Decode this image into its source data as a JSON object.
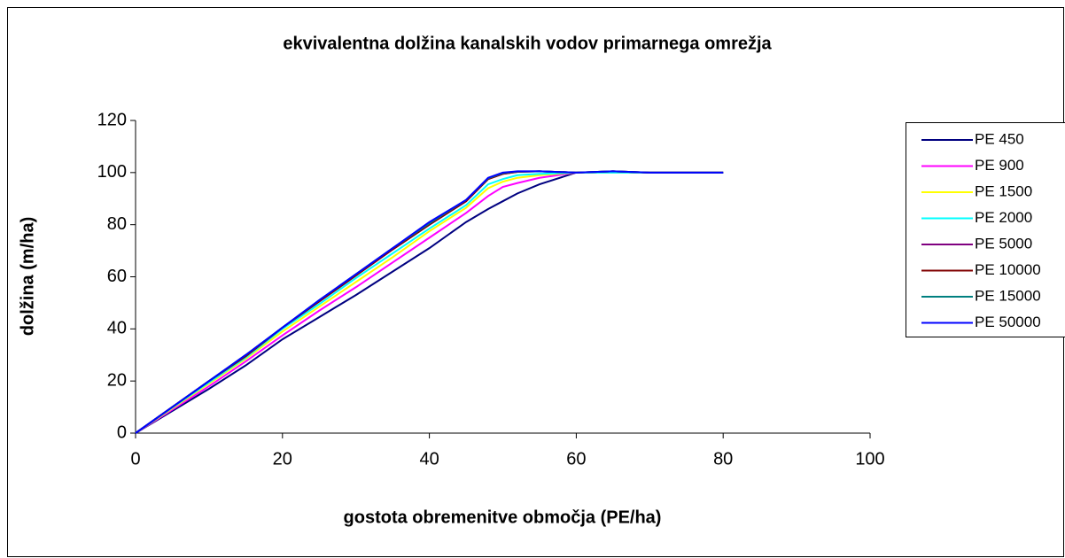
{
  "chart_data": {
    "type": "line",
    "title": "ekvivalentna dolžina kanalskih vodov primarnega omrežja",
    "xlabel": "gostota obremenitve območja (PE/ha)",
    "ylabel": "dolžina (m/ha)",
    "x": [
      0,
      5,
      10,
      15,
      20,
      25,
      30,
      35,
      40,
      45,
      48,
      50,
      52,
      55,
      60,
      65,
      70,
      75,
      80
    ],
    "xlim": [
      0,
      100
    ],
    "xticks": [
      0,
      20,
      40,
      60,
      80,
      100
    ],
    "ylim": [
      0,
      120
    ],
    "yticks": [
      0,
      20,
      40,
      60,
      80,
      100,
      120
    ],
    "grid": false,
    "legend": "right",
    "series": [
      {
        "name": "PE 450",
        "color": "#000080",
        "values": [
          0,
          8.5,
          17,
          26,
          36,
          44.5,
          53,
          62,
          71,
          81,
          86,
          89,
          92,
          95.5,
          100,
          100,
          100,
          100,
          100
        ]
      },
      {
        "name": "PE 900",
        "color": "#ff00ff",
        "values": [
          0,
          9,
          18,
          27.5,
          37.5,
          47,
          56,
          65.5,
          75,
          84.5,
          91,
          94.5,
          96,
          98,
          100,
          100,
          100,
          100,
          100
        ]
      },
      {
        "name": "PE 1500",
        "color": "#ffff00",
        "values": [
          0,
          9.5,
          19,
          28.5,
          39,
          48.5,
          58,
          67.5,
          77.5,
          86.5,
          94,
          96.5,
          98,
          99,
          100,
          100,
          100,
          100,
          100
        ]
      },
      {
        "name": "PE 2000",
        "color": "#00ffff",
        "values": [
          0,
          9.8,
          19.5,
          29,
          40,
          49.5,
          59.5,
          69,
          78.5,
          87.5,
          95.5,
          97.5,
          99,
          99.5,
          100,
          100,
          100,
          100,
          100
        ]
      },
      {
        "name": "PE 5000",
        "color": "#800080",
        "values": [
          0,
          10,
          20,
          29.5,
          40.5,
          50.5,
          60.5,
          70.5,
          80,
          89,
          97.5,
          99.5,
          100.3,
          100.5,
          100,
          100.5,
          100,
          100,
          100
        ]
      },
      {
        "name": "PE 10000",
        "color": "#800000",
        "values": [
          0,
          10,
          20,
          29.5,
          40.5,
          50.5,
          60.5,
          70.5,
          80,
          89,
          97.5,
          99.5,
          100.3,
          100.5,
          100,
          100.5,
          100,
          100,
          100
        ]
      },
      {
        "name": "PE 15000",
        "color": "#008080",
        "values": [
          0,
          10,
          20,
          30,
          40.5,
          51,
          61,
          71,
          80.5,
          89.5,
          97.8,
          99.8,
          100.4,
          100.5,
          100,
          100.5,
          100,
          100,
          100
        ]
      },
      {
        "name": "PE 50000",
        "color": "#0000ff",
        "values": [
          0,
          10,
          20,
          30,
          40.5,
          51,
          61,
          71,
          81,
          89.5,
          98,
          100,
          100.5,
          100.5,
          100,
          100.5,
          100,
          100,
          100
        ]
      }
    ]
  }
}
